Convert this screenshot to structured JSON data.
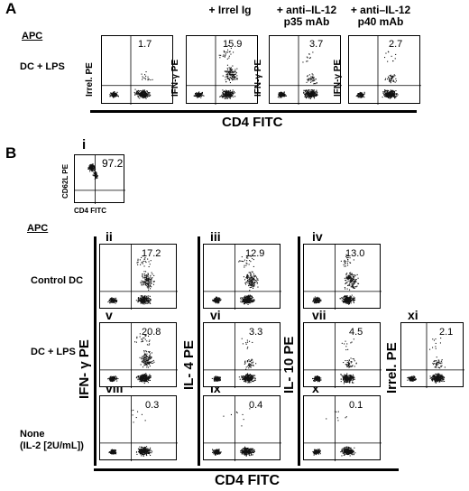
{
  "panelA": {
    "letter": "A",
    "apc_label": "APC",
    "row_label": "DC + LPS",
    "columns": [
      {
        "title": "",
        "ylabel": "Irrel. PE",
        "value": "1.7"
      },
      {
        "title": "+ Irrel Ig",
        "ylabel": "IFN-γ PE",
        "value": "15.9"
      },
      {
        "title": "+ anti–IL-12\np35 mAb",
        "ylabel": "IFN-γ PE",
        "value": "3.7"
      },
      {
        "title": "+ anti–IL-12\np40 mAb",
        "ylabel": "IFN-γ PE",
        "value": "2.7"
      }
    ],
    "xlabel": "CD4 FITC"
  },
  "panelB": {
    "letter": "B",
    "inset": {
      "roman": "i",
      "value": "97.2",
      "ylabel": "CD62L PE",
      "xlabel": "CD4 FITC"
    },
    "apc_label": "APC",
    "row_labels": [
      "Control DC",
      "DC + LPS",
      "None\n(IL-2 [2U/mL])"
    ],
    "col_ylabels": [
      "IFN- γ PE",
      "IL- 4 PE",
      "IL- 10 PE",
      "Irrel. PE"
    ],
    "plots": [
      {
        "roman": "ii",
        "value": "17.2"
      },
      {
        "roman": "iii",
        "value": "12.9"
      },
      {
        "roman": "iv",
        "value": "13.0"
      },
      {
        "roman": "v",
        "value": "20.8"
      },
      {
        "roman": "vi",
        "value": "3.3"
      },
      {
        "roman": "vii",
        "value": "4.5"
      },
      {
        "roman": "xi",
        "value": "2.1"
      },
      {
        "roman": "viii",
        "value": "0.3"
      },
      {
        "roman": "ix",
        "value": "0.4"
      },
      {
        "roman": "x",
        "value": "0.1"
      }
    ],
    "xlabel": "CD4 FITC"
  }
}
